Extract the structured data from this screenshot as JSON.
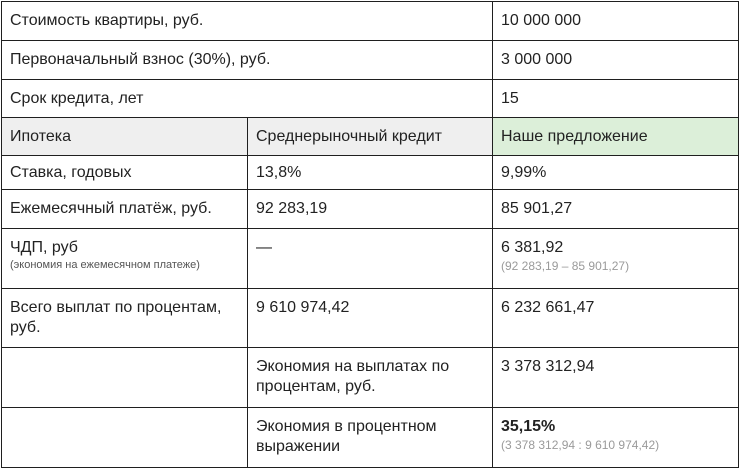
{
  "rows_top": [
    {
      "label": "Стоимость квартиры, руб.",
      "value": "10 000 000"
    },
    {
      "label": "Первоначальный взнос (30%), руб.",
      "value": "3 000 000"
    },
    {
      "label": "Срок кредита, лет",
      "value": "15"
    }
  ],
  "header": {
    "col1": "Ипотека",
    "col2": "Среднерыночный кредит",
    "col3": "Наше предложение"
  },
  "rows": {
    "rate": {
      "label": "Ставка, годовых",
      "market": "13,8%",
      "ours": "9,99%"
    },
    "monthly": {
      "label": "Ежемесячный платёж, руб.",
      "market": "92 283,19",
      "ours": "85 901,27"
    },
    "chdp": {
      "label": "ЧДП, руб",
      "sublabel": "(экономия на ежемесячном платеже)",
      "market": "—",
      "ours": "6 381,92",
      "ours_note": "(92 283,19 – 85 901,27)"
    },
    "interest": {
      "label": "Всего выплат по процентам, руб.",
      "market": "9 610 974,42",
      "ours": "6 232 661,47"
    },
    "savings": {
      "label": "",
      "market": "Экономия на выплатах по процентам, руб.",
      "ours": "3 378 312,94"
    },
    "percent": {
      "label": "",
      "market": "Экономия в процентном выражении",
      "ours": "35,15%",
      "ours_note": "(3 378 312,94 : 9 610 974,42)"
    }
  },
  "colors": {
    "header_bg": "#efefef",
    "highlight_bg": "#dcefd9"
  }
}
